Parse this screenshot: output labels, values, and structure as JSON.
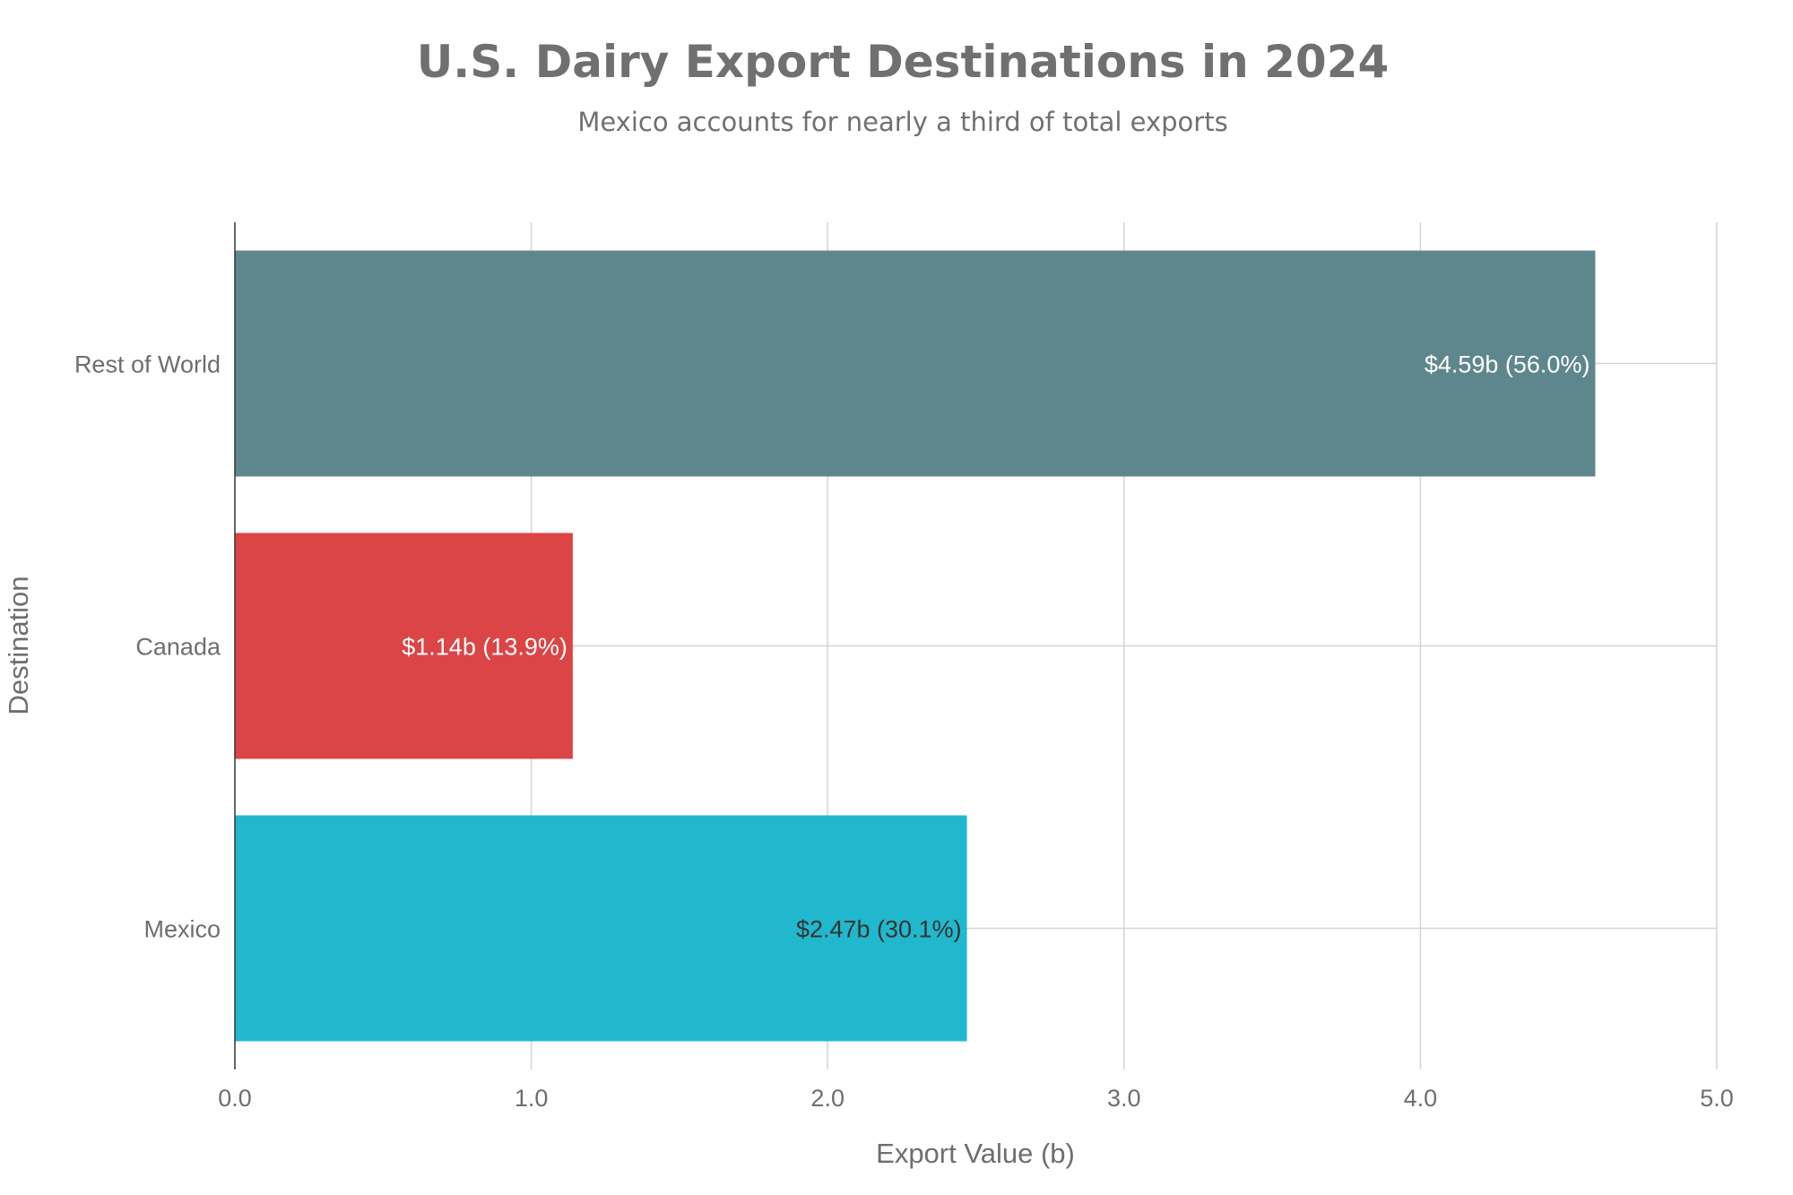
{
  "chart_data": {
    "type": "bar",
    "orientation": "horizontal",
    "title": "U.S. Dairy Export Destinations in 2024",
    "subtitle": "Mexico accounts for nearly a third of total exports",
    "xlabel": "Export Value (b)",
    "ylabel": "Destination",
    "xlim": [
      0,
      5
    ],
    "x_ticks": [
      "0.0",
      "1.0",
      "2.0",
      "3.0",
      "4.0",
      "5.0"
    ],
    "grid": true,
    "legend": "none",
    "categories": [
      "Rest of World",
      "Canada",
      "Mexico"
    ],
    "values": [
      4.59,
      1.14,
      2.47
    ],
    "data_labels": [
      "$4.59b (56.0%)",
      "$1.14b (13.9%)",
      "$2.47b (30.1%)"
    ],
    "colors": [
      "#5e878d",
      "#db4545",
      "#21b8cd"
    ],
    "label_colors": [
      "#ffffff",
      "#ffffff",
      "#333333"
    ]
  }
}
